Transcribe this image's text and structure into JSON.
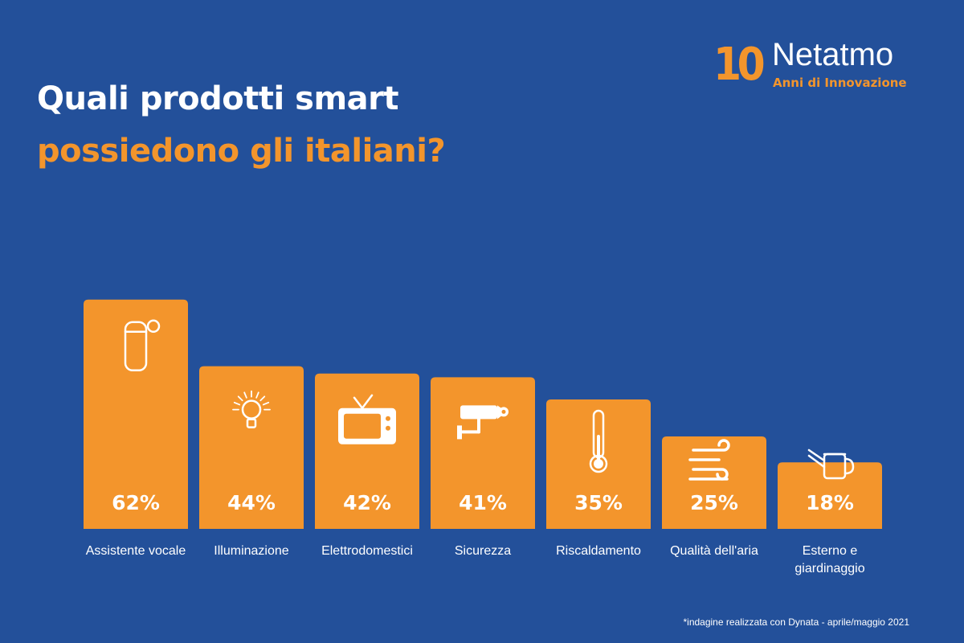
{
  "header": {
    "title_line1": "Quali prodotti smart",
    "title_line2": "possiedono gli italiani?"
  },
  "logo": {
    "number": "10",
    "brand": "Netatmo",
    "tagline": "Anni di Innovazione"
  },
  "colors": {
    "background": "#23509a",
    "bar": "#f3952c",
    "text": "#ffffff",
    "accent": "#f3952c"
  },
  "chart_data": {
    "type": "bar",
    "categories": [
      [
        "Assistente vocale"
      ],
      [
        "Illuminazione"
      ],
      [
        "Elettrodomestici"
      ],
      [
        "Sicurezza"
      ],
      [
        "Riscaldamento"
      ],
      [
        "Qualità dell'aria"
      ],
      [
        "Esterno e",
        "giardinaggio"
      ]
    ],
    "values": [
      62,
      44,
      42,
      41,
      35,
      25,
      18
    ],
    "value_labels": [
      "62%",
      "44%",
      "42%",
      "41%",
      "35%",
      "25%",
      "18%"
    ],
    "icons": [
      "smart-speaker-icon",
      "light-bulb-icon",
      "television-icon",
      "security-camera-icon",
      "thermometer-icon",
      "wind-icon",
      "watering-can-icon"
    ],
    "grid": false,
    "legend": "none"
  },
  "footnote": "*indagine realizzata con Dynata - aprile/maggio 2021"
}
